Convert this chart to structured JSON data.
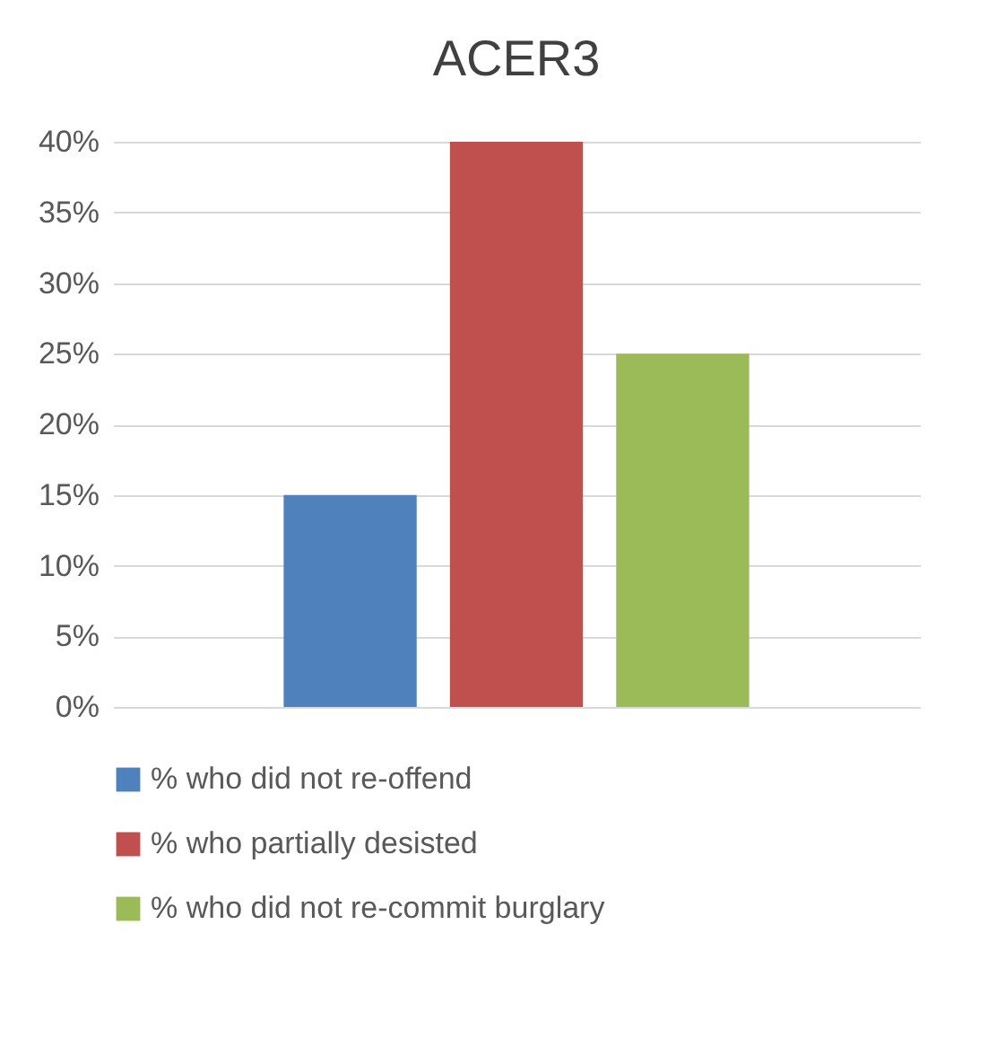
{
  "chart_data": {
    "type": "bar",
    "title": "ACER3",
    "categories": [
      null
    ],
    "series": [
      {
        "name": "% who did not re-offend",
        "color": "#4f81bd",
        "values": [
          15
        ]
      },
      {
        "name": "% who partially desisted",
        "color": "#c0504d",
        "values": [
          40
        ]
      },
      {
        "name": "% who did not re-commit burglary",
        "color": "#9bbb59",
        "values": [
          25
        ]
      }
    ],
    "ylim": [
      0,
      40
    ],
    "yticks": [
      {
        "value": 0,
        "label": "0%"
      },
      {
        "value": 5,
        "label": "5%"
      },
      {
        "value": 10,
        "label": "10%"
      },
      {
        "value": 15,
        "label": "15%"
      },
      {
        "value": 20,
        "label": "20%"
      },
      {
        "value": 25,
        "label": "25%"
      },
      {
        "value": 30,
        "label": "30%"
      },
      {
        "value": 35,
        "label": "35%"
      },
      {
        "value": 40,
        "label": "40%"
      }
    ],
    "grid": true,
    "legend": "bottom"
  }
}
